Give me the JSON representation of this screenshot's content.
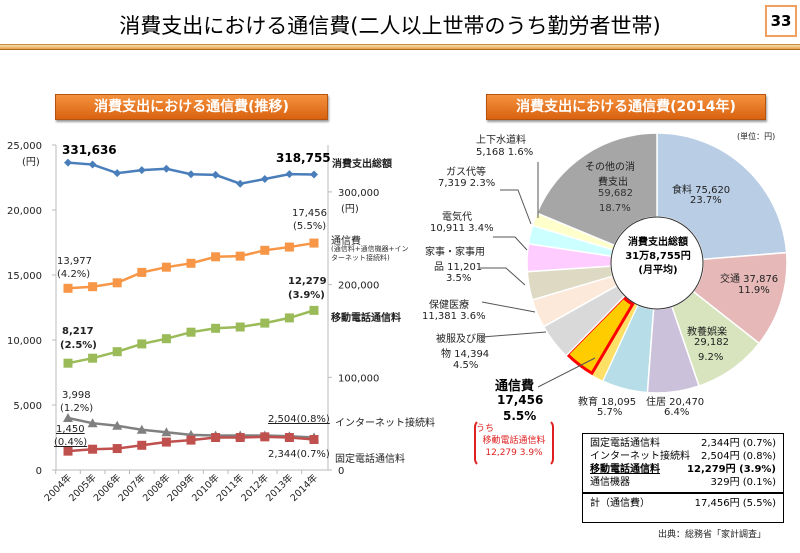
{
  "slide": {
    "title": "消費支出における通信費(二人以上世帯のうち勤労者世帯)",
    "page_number": "33",
    "source": "出典：総務省「家計調査」"
  },
  "sections": {
    "trend": "消費支出における通信費(推移)",
    "pie": "消費支出における通信費(2014年)"
  },
  "chart_data": [
    {
      "type": "line",
      "title": "消費支出における通信費(推移)",
      "categories": [
        "2004年",
        "2005年",
        "2006年",
        "2007年",
        "2008年",
        "2009年",
        "2010年",
        "2011年",
        "2012年",
        "2013年",
        "2014年"
      ],
      "left_axis": {
        "ticks": [
          "0",
          "5,000",
          "10,000",
          "15,000",
          "20,000",
          "25,000"
        ],
        "unit": "(円)",
        "range": [
          0,
          25000
        ]
      },
      "right_axis": {
        "ticks": [
          "0",
          "100,000",
          "200,000",
          "300,000"
        ],
        "unit": "(円)",
        "range": [
          0,
          350000
        ]
      },
      "series": [
        {
          "name": "消費支出総額",
          "axis": "right",
          "color": "#4a7ebb",
          "marker": "diamond",
          "values": [
            331636,
            329499,
            320231,
            323459,
            324929,
            319060,
            318315,
            308838,
            313874,
            319170,
            318755
          ]
        },
        {
          "name": "通信費",
          "sub": "(通信料+通信機器+インターネット接続料)",
          "axis": "left",
          "color": "#f79646",
          "marker": "square",
          "values": [
            13977,
            14100,
            14400,
            15200,
            15600,
            15900,
            16400,
            16450,
            16900,
            17150,
            17456
          ]
        },
        {
          "name": "移動電話通信料",
          "axis": "left",
          "color": "#9bbb59",
          "marker": "square",
          "values": [
            8217,
            8600,
            9100,
            9700,
            10100,
            10600,
            10900,
            11000,
            11300,
            11700,
            12279
          ]
        },
        {
          "name": "インターネット接続料",
          "axis": "left",
          "color": "#808080",
          "marker": "triangle",
          "values": [
            3998,
            3600,
            3400,
            3100,
            2900,
            2700,
            2650,
            2650,
            2650,
            2600,
            2504
          ]
        },
        {
          "name": "固定電話通信料",
          "axis": "left",
          "color": "#c0504d",
          "marker": "square",
          "values": [
            1450,
            1600,
            1650,
            1900,
            2150,
            2300,
            2500,
            2500,
            2550,
            2500,
            2344
          ]
        }
      ],
      "annotations": {
        "total_start": "331,636",
        "total_end": "318,755",
        "comm_start": "13,977",
        "comm_start_pct": "(4.2%)",
        "comm_end": "17,456",
        "comm_end_pct": "(5.5%)",
        "mobile_start": "8,217",
        "mobile_start_pct": "(2.5%)",
        "mobile_end": "12,279",
        "mobile_end_pct": "(3.9%)",
        "inet_start": "3,998",
        "inet_start_pct": "(1.2%)",
        "fixed_start": "1,450",
        "fixed_start_pct": "(0.4%)",
        "inet_end": "2,504(0.8%)",
        "fixed_end": "2,344(0.7%)"
      }
    },
    {
      "type": "pie",
      "title": "消費支出における通信費(2014年)",
      "unit": "(単位：円)",
      "center": {
        "line1": "消費支出総額",
        "line2": "31万8,755円",
        "line3": "(月平均)"
      },
      "slices": [
        {
          "label": "食料",
          "value": 75620,
          "pct": "23.7%",
          "color": "#b9cde5"
        },
        {
          "label": "交通",
          "value": 37876,
          "pct": "11.9%",
          "color": "#e6b9b8"
        },
        {
          "label": "教養娯楽",
          "value": 29182,
          "pct": "9.2%",
          "color": "#d7e4bd"
        },
        {
          "label": "住居",
          "value": 20470,
          "pct": "6.4%",
          "color": "#ccc1da"
        },
        {
          "label": "教育",
          "value": 18095,
          "pct": "5.7%",
          "color": "#b7dee8"
        },
        {
          "label": "通信費",
          "value": 17456,
          "pct": "5.5%",
          "color": "#ffcc00",
          "highlight": {
            "label": "うち移動電話通信料",
            "value": 12279,
            "pct": "3.9%",
            "text": "12,279 3.9%"
          }
        },
        {
          "label": "被服及び履物",
          "value": 14394,
          "pct": "4.5%",
          "color": "#d9d9d9"
        },
        {
          "label": "保健医療",
          "value": 11381,
          "pct": "3.6%",
          "color": "#fde9d9"
        },
        {
          "label": "家事・家事用品",
          "value": 11201,
          "pct": "3.5%",
          "color": "#ddd9c3"
        },
        {
          "label": "電気代",
          "value": 10911,
          "pct": "3.4%",
          "color": "#ffccff"
        },
        {
          "label": "ガス代等",
          "value": 7319,
          "pct": "2.3%",
          "color": "#ccffff"
        },
        {
          "label": "上下水道料",
          "value": 5168,
          "pct": "1.6%",
          "color": "#ffffcc"
        },
        {
          "label": "その他の消費支出",
          "value": 59682,
          "pct": "18.7%",
          "color": "#a6a6a6"
        }
      ]
    }
  ],
  "pie_labels": {
    "food": "食料 75,620",
    "food_pct": "23.7%",
    "transport": "交通 37,876",
    "transport_pct": "11.9%",
    "culture": "教養娯楽",
    "culture_val": "29,182",
    "culture_pct": "9.2%",
    "housing": "住居 20,470",
    "housing_pct": "6.4%",
    "education": "教育 18,095",
    "education_pct": "5.7%",
    "comm": "通信費",
    "comm_val": "17,456",
    "comm_pct": "5.5%",
    "mobile_pre": "うち",
    "mobile": "移動電話通信料",
    "mobile_val": "12,279 3.9%",
    "clothing": "被服及び履",
    "clothing2": "物 14,394",
    "clothing_pct": "4.5%",
    "health": "保健医療",
    "health_val": "11,381 3.6%",
    "household": "家事・家事用",
    "household2": "品 11,201",
    "household_pct": "3.5%",
    "elec": "電気代",
    "elec_val": "10,911 3.4%",
    "gas": "ガス代等",
    "gas_val": "7,319 2.3%",
    "water": "上下水道料",
    "water_val": "5,168 1.6%",
    "other": "その他の消",
    "other2": "費支出",
    "other_val": "59,682",
    "other_pct": "18.7%"
  },
  "breakdown_table": {
    "rows": [
      {
        "label": "固定電話通信料",
        "value": "2,344円",
        "pct": "(0.7%)"
      },
      {
        "label": "インターネット接続料",
        "value": "2,504円",
        "pct": "(0.8%)"
      },
      {
        "label": "移動電話通信料",
        "value": "12,279円",
        "pct": "(3.9%)"
      },
      {
        "label": "通信機器",
        "value": "329円",
        "pct": "(0.1%)"
      }
    ],
    "total": {
      "label": "計（通信費）",
      "value": "17,456円",
      "pct": "(5.5%)"
    }
  }
}
